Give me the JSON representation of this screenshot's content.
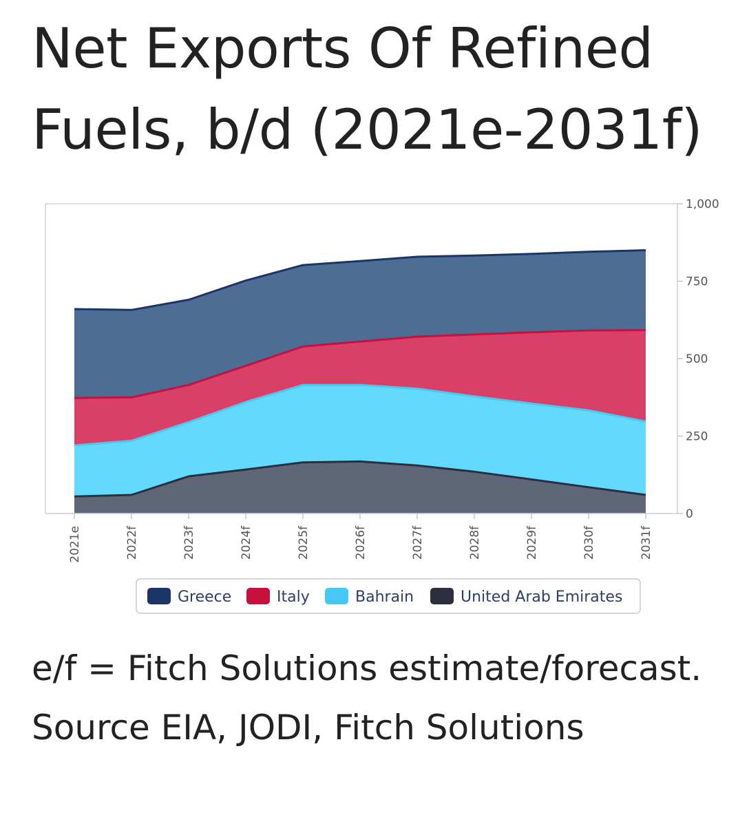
{
  "title": "Net Exports Of Refined Fuels, b/d (2021e-2031f)",
  "footnote": "e/f = Fitch Solutions estimate/forecast. Source EIA, JODI, Fitch Solutions",
  "chart_data": {
    "type": "area",
    "stacked": true,
    "categories": [
      "2021e",
      "2022f",
      "2023f",
      "2024f",
      "2025f",
      "2026f",
      "2027f",
      "2028f",
      "2029f",
      "2030f",
      "2031f"
    ],
    "series": [
      {
        "name": "United Arab Emirates",
        "color": "#5f6678",
        "line_color": "#2b2f3d",
        "values": [
          55,
          60,
          120,
          142,
          165,
          168,
          155,
          135,
          110,
          85,
          60
        ]
      },
      {
        "name": "Bahrain",
        "color": "#62d9fd",
        "line_color": "#46c8f5",
        "values": [
          165,
          175,
          175,
          218,
          250,
          247,
          248,
          243,
          245,
          248,
          237
        ]
      },
      {
        "name": "Italy",
        "color": "#d84067",
        "line_color": "#c8103e",
        "values": [
          153,
          140,
          120,
          117,
          124,
          140,
          168,
          200,
          230,
          258,
          295
        ]
      },
      {
        "name": "Greece",
        "color": "#4e6d94",
        "line_color": "#1a3668",
        "values": [
          287,
          282,
          275,
          275,
          263,
          260,
          258,
          255,
          253,
          254,
          258
        ]
      }
    ],
    "legend_order": [
      "Greece",
      "Italy",
      "Bahrain",
      "United Arab Emirates"
    ],
    "legend_colors": [
      "#1a3668",
      "#c8103e",
      "#46c8f5",
      "#2b2f3d"
    ],
    "y_axis": {
      "side": "right",
      "ylim": [
        0,
        1000
      ],
      "ticks": [
        0,
        250,
        500,
        750,
        1000
      ],
      "tick_labels": [
        "0",
        "250",
        "500",
        "750",
        "1,000"
      ]
    },
    "legend_position": "bottom",
    "grid": false
  }
}
